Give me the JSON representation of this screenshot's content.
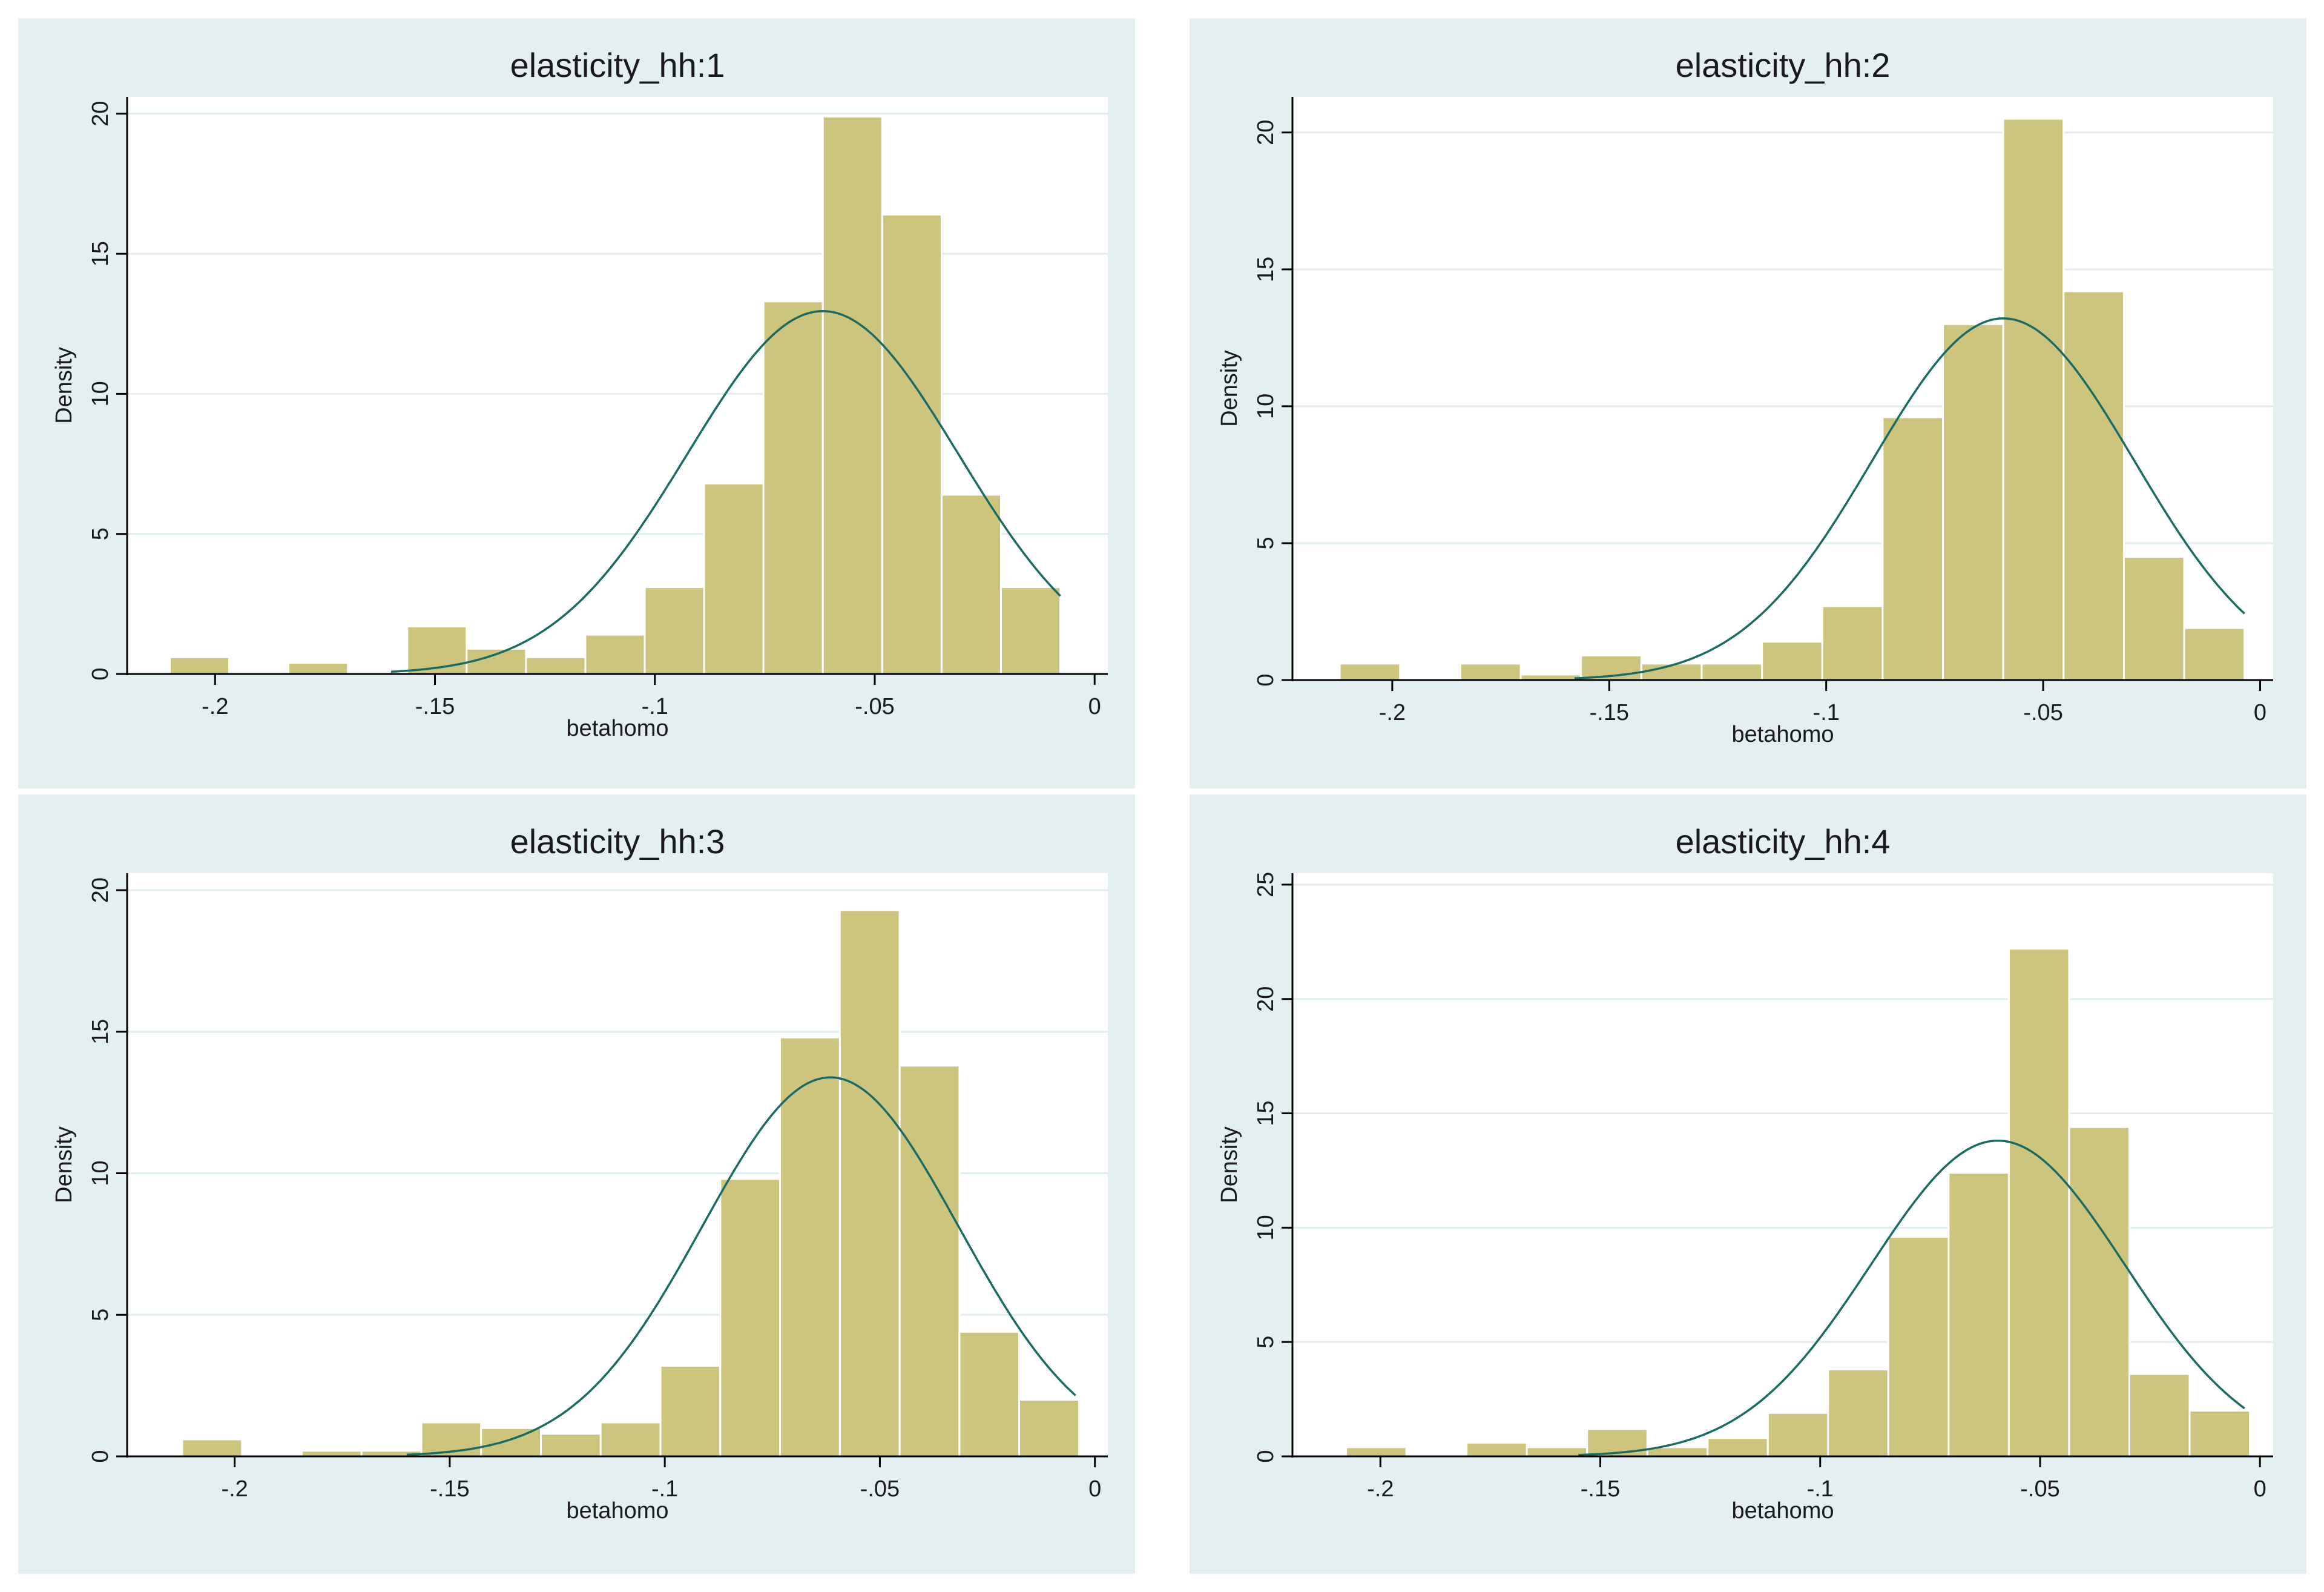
{
  "chart_data": [
    {
      "type": "bar",
      "title": "elasticity_hh:1",
      "xlabel": "betahomo",
      "ylabel": "Density",
      "xlim": [
        -0.22,
        0.003
      ],
      "ylim": [
        0,
        20.6
      ],
      "xticks": [
        -0.2,
        -0.15,
        -0.1,
        -0.05,
        0
      ],
      "xtick_labels": [
        "-.2",
        "-.15",
        "-.1",
        "-.05",
        "0"
      ],
      "yticks": [
        0,
        5,
        10,
        15,
        20
      ],
      "ytick_labels": [
        "0",
        "5",
        "10",
        "15",
        "20"
      ],
      "bins": [
        {
          "x0": -0.2103,
          "x1": -0.1968,
          "density": 0.6
        },
        {
          "x0": -0.1833,
          "x1": -0.1698,
          "density": 0.4
        },
        {
          "x0": -0.1563,
          "x1": -0.1428,
          "density": 1.7
        },
        {
          "x0": -0.1428,
          "x1": -0.1293,
          "density": 0.9
        },
        {
          "x0": -0.1293,
          "x1": -0.1158,
          "density": 0.6
        },
        {
          "x0": -0.1158,
          "x1": -0.1023,
          "density": 1.4
        },
        {
          "x0": -0.1023,
          "x1": -0.0888,
          "density": 3.1
        },
        {
          "x0": -0.0888,
          "x1": -0.0753,
          "density": 6.8
        },
        {
          "x0": -0.0753,
          "x1": -0.0618,
          "density": 13.3
        },
        {
          "x0": -0.0618,
          "x1": -0.0483,
          "density": 19.9
        },
        {
          "x0": -0.0483,
          "x1": -0.0348,
          "density": 16.4
        },
        {
          "x0": -0.0348,
          "x1": -0.0213,
          "density": 6.4
        },
        {
          "x0": -0.0213,
          "x1": -0.0078,
          "density": 3.1
        }
      ],
      "normal_curve": {
        "mean": -0.0618,
        "sd": 0.0308,
        "x_range": [
          -0.16,
          -0.0078
        ]
      }
    },
    {
      "type": "bar",
      "title": "elasticity_hh:2",
      "xlabel": "betahomo",
      "ylabel": "Density",
      "xlim": [
        -0.223,
        0.003
      ],
      "ylim": [
        0,
        21.3
      ],
      "xticks": [
        -0.2,
        -0.15,
        -0.1,
        -0.05,
        0
      ],
      "xtick_labels": [
        "-.2",
        "-.15",
        "-.1",
        "-.05",
        "0"
      ],
      "yticks": [
        0,
        5,
        10,
        15,
        20
      ],
      "ytick_labels": [
        "0",
        "5",
        "10",
        "15",
        "20"
      ],
      "bins": [
        {
          "x0": -0.2121,
          "x1": -0.1982,
          "density": 0.6
        },
        {
          "x0": -0.1843,
          "x1": -0.1704,
          "density": 0.6
        },
        {
          "x0": -0.1704,
          "x1": -0.1565,
          "density": 0.2
        },
        {
          "x0": -0.1565,
          "x1": -0.1426,
          "density": 0.9
        },
        {
          "x0": -0.1426,
          "x1": -0.1287,
          "density": 0.6
        },
        {
          "x0": -0.1287,
          "x1": -0.1148,
          "density": 0.6
        },
        {
          "x0": -0.1148,
          "x1": -0.1009,
          "density": 1.4
        },
        {
          "x0": -0.1009,
          "x1": -0.087,
          "density": 2.7
        },
        {
          "x0": -0.087,
          "x1": -0.0731,
          "density": 9.6
        },
        {
          "x0": -0.0731,
          "x1": -0.0592,
          "density": 13.0
        },
        {
          "x0": -0.0592,
          "x1": -0.0453,
          "density": 20.5
        },
        {
          "x0": -0.0453,
          "x1": -0.0314,
          "density": 14.2
        },
        {
          "x0": -0.0314,
          "x1": -0.0175,
          "density": 4.5
        },
        {
          "x0": -0.0175,
          "x1": -0.0036,
          "density": 1.9
        }
      ],
      "normal_curve": {
        "mean": -0.0592,
        "sd": 0.0302,
        "x_range": [
          -0.158,
          -0.0036
        ]
      }
    },
    {
      "type": "bar",
      "title": "elasticity_hh:3",
      "xlabel": "betahomo",
      "ylabel": "Density",
      "xlim": [
        -0.225,
        0.003
      ],
      "ylim": [
        0,
        20.6
      ],
      "xticks": [
        -0.2,
        -0.15,
        -0.1,
        -0.05,
        0
      ],
      "xtick_labels": [
        "-.2",
        "-.15",
        "-.1",
        "-.05",
        "0"
      ],
      "yticks": [
        0,
        5,
        10,
        15,
        20
      ],
      "ytick_labels": [
        "0",
        "5",
        "10",
        "15",
        "20"
      ],
      "bins": [
        {
          "x0": -0.2122,
          "x1": -0.1983,
          "density": 0.6
        },
        {
          "x0": -0.1844,
          "x1": -0.1705,
          "density": 0.2
        },
        {
          "x0": -0.1705,
          "x1": -0.1566,
          "density": 0.2
        },
        {
          "x0": -0.1566,
          "x1": -0.1427,
          "density": 1.2
        },
        {
          "x0": -0.1427,
          "x1": -0.1288,
          "density": 1.0
        },
        {
          "x0": -0.1288,
          "x1": -0.1149,
          "density": 0.8
        },
        {
          "x0": -0.1149,
          "x1": -0.101,
          "density": 1.2
        },
        {
          "x0": -0.101,
          "x1": -0.0871,
          "density": 3.2
        },
        {
          "x0": -0.0871,
          "x1": -0.0732,
          "density": 9.8
        },
        {
          "x0": -0.0732,
          "x1": -0.0593,
          "density": 14.8
        },
        {
          "x0": -0.0593,
          "x1": -0.0454,
          "density": 19.3
        },
        {
          "x0": -0.0454,
          "x1": -0.0315,
          "density": 13.8
        },
        {
          "x0": -0.0315,
          "x1": -0.0176,
          "density": 4.4
        },
        {
          "x0": -0.0176,
          "x1": -0.0037,
          "density": 2.0
        }
      ],
      "normal_curve": {
        "mean": -0.0615,
        "sd": 0.0298,
        "x_range": [
          -0.16,
          -0.0045
        ]
      }
    },
    {
      "type": "bar",
      "title": "elasticity_hh:4",
      "xlabel": "betahomo",
      "ylabel": "Density",
      "xlim": [
        -0.22,
        0.003
      ],
      "ylim": [
        0,
        25.5
      ],
      "xticks": [
        -0.2,
        -0.15,
        -0.1,
        -0.05,
        0
      ],
      "xtick_labels": [
        "-.2",
        "-.15",
        "-.1",
        "-.05",
        "0"
      ],
      "yticks": [
        0,
        5,
        10,
        15,
        20,
        25
      ],
      "ytick_labels": [
        "0",
        "5",
        "10",
        "15",
        "20",
        "25"
      ],
      "bins": [
        {
          "x0": -0.2078,
          "x1": -0.1941,
          "density": 0.4
        },
        {
          "x0": -0.1804,
          "x1": -0.1667,
          "density": 0.6
        },
        {
          "x0": -0.1667,
          "x1": -0.153,
          "density": 0.4
        },
        {
          "x0": -0.153,
          "x1": -0.1393,
          "density": 1.2
        },
        {
          "x0": -0.1393,
          "x1": -0.1256,
          "density": 0.4
        },
        {
          "x0": -0.1256,
          "x1": -0.1119,
          "density": 0.8
        },
        {
          "x0": -0.1119,
          "x1": -0.0982,
          "density": 1.9
        },
        {
          "x0": -0.0982,
          "x1": -0.0845,
          "density": 3.8
        },
        {
          "x0": -0.0845,
          "x1": -0.0708,
          "density": 9.6
        },
        {
          "x0": -0.0708,
          "x1": -0.0571,
          "density": 12.4
        },
        {
          "x0": -0.0571,
          "x1": -0.0434,
          "density": 22.2
        },
        {
          "x0": -0.0434,
          "x1": -0.0297,
          "density": 14.4
        },
        {
          "x0": -0.0297,
          "x1": -0.016,
          "density": 3.6
        },
        {
          "x0": -0.016,
          "x1": -0.0023,
          "density": 2.0
        }
      ],
      "normal_curve": {
        "mean": -0.0596,
        "sd": 0.0289,
        "x_range": [
          -0.155,
          -0.0035
        ]
      }
    }
  ],
  "colors": {
    "panel_bg": "#e3eff0",
    "plot_bg": "#ffffff",
    "bar_fill": "#cdc47e",
    "bar_edge": "#ffffff",
    "curve": "#1a6b63",
    "grid": "#e1eded",
    "axis": "#000000"
  }
}
